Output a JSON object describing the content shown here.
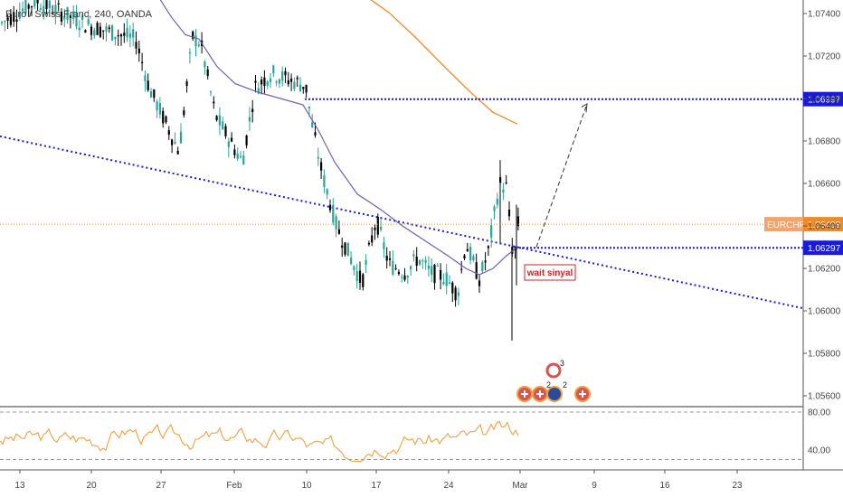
{
  "chart_data": {
    "type": "candlestick",
    "title": "Euro / Swiss Franc, 240, OANDA",
    "symbol_label": "EURCHF",
    "last_price": "1.06408",
    "y_tick_labels": [
      "1.07400",
      "1.07200",
      "1.07000",
      "1.06800",
      "1.06600",
      "1.06400",
      "1.06200",
      "1.06000",
      "1.05800",
      "1.05600"
    ],
    "ylim": [
      1.0549,
      1.0749
    ],
    "x_tick_labels": [
      "13",
      "20",
      "27",
      "Feb",
      "10",
      "17",
      "24",
      "Mar",
      "9",
      "16",
      "23"
    ],
    "levels": [
      {
        "label": "1.06997",
        "value": 1.06997
      },
      {
        "label": "1.06297",
        "value": 1.06297
      }
    ],
    "annotation": "wait sinyal",
    "colors": {
      "up": "#26a69a",
      "down": "#000000",
      "ma_fast": "#6b5fb5",
      "ma_slow": "#f08a24",
      "level": "#1a1adb",
      "price_line": "#f08a24",
      "annotation": "#d32020",
      "rsi": "#f0a040"
    },
    "rsi": {
      "y_tick_labels": [
        "80.00",
        "40.00"
      ],
      "levels": [
        80,
        30
      ],
      "ylim": [
        20,
        90
      ]
    },
    "event_badges": [
      {
        "label": "3"
      },
      {
        "label": "2"
      },
      {
        "label": "2"
      }
    ]
  }
}
